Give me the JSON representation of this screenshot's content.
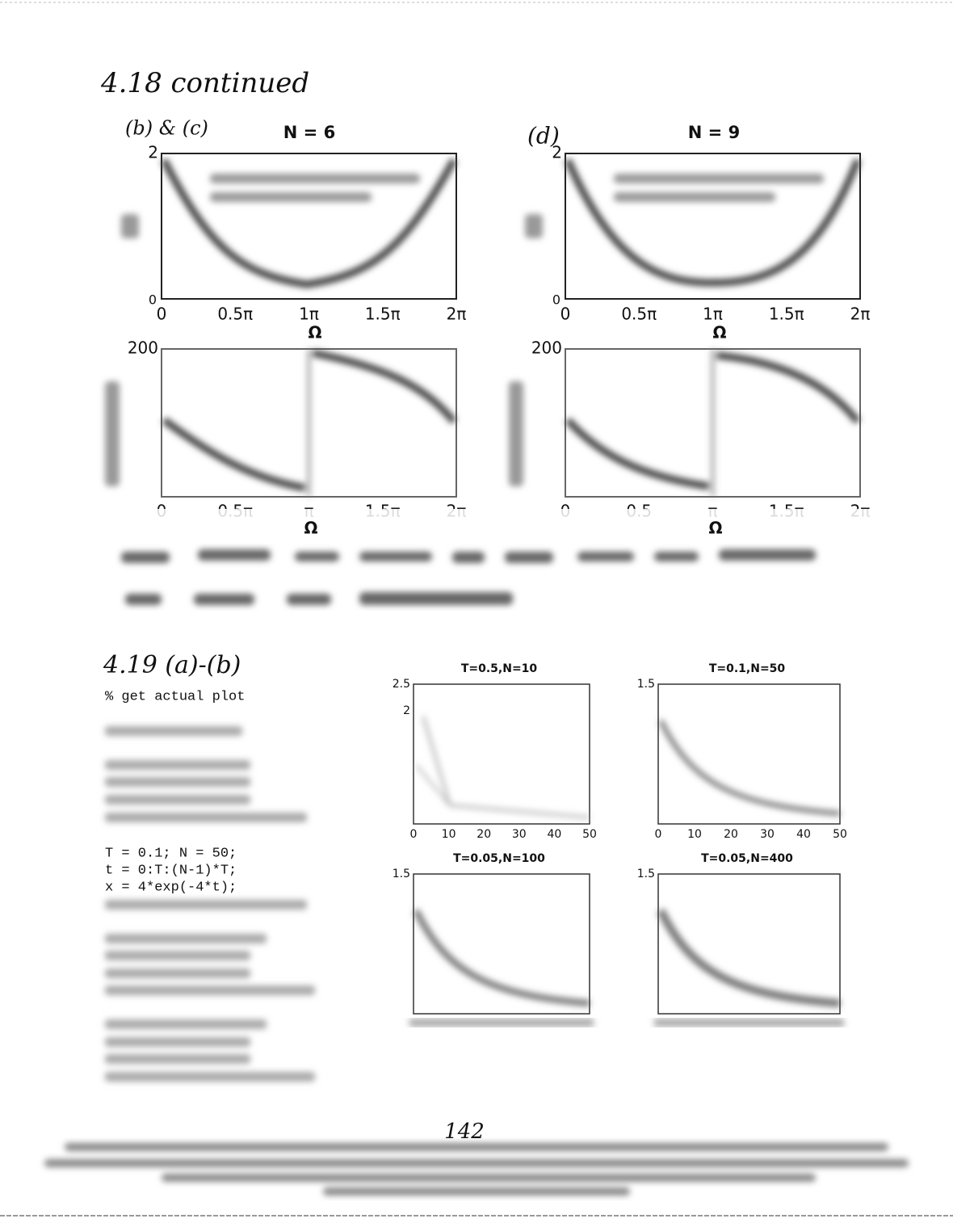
{
  "section_418": {
    "heading": "4.18 continued",
    "label_bc": "(b) & (c)",
    "label_d": "(d)",
    "magnitude_plots": [
      {
        "title": "N = 6",
        "ytick_top": "2",
        "ytick_bottom": "0",
        "xticks": [
          "0",
          "0.5π",
          "1π",
          "1.5π",
          "2π"
        ],
        "xlabel": "Ω"
      },
      {
        "title": "N = 9",
        "ytick_top": "2",
        "ytick_bottom": "0",
        "xticks": [
          "0",
          "0.5π",
          "1π",
          "1.5π",
          "2π"
        ],
        "xlabel": "Ω"
      }
    ],
    "phase_plots": [
      {
        "ytick_top": "200",
        "xticks": [
          "0",
          "0.5π",
          "π",
          "1.5π",
          "2π"
        ],
        "xlabel": "Ω"
      },
      {
        "ytick_top": "200",
        "xticks": [
          "0",
          "0.5",
          "π",
          "1.5π",
          "2π"
        ],
        "xlabel": "Ω"
      }
    ]
  },
  "section_419": {
    "heading": "4.19 (a)-(b)",
    "code_top": "% get actual plot",
    "code_middle": [
      "T = 0.1; N = 50;",
      "t = 0:T:(N-1)*T;",
      "x = 4*exp(-4*t);"
    ],
    "plots": [
      {
        "title": "T=0.5,N=10",
        "yticks": [
          "2.5",
          "2"
        ],
        "xticks": [
          "0",
          "10",
          "20",
          "30",
          "40",
          "50"
        ]
      },
      {
        "title": "T=0.1,N=50",
        "yticks": [
          "1.5"
        ],
        "xticks": [
          "0",
          "10",
          "20",
          "30",
          "40",
          "50"
        ]
      },
      {
        "title": "T=0.05,N=100",
        "yticks": [
          "1.5"
        ],
        "xticks": []
      },
      {
        "title": "T=0.05,N=400",
        "yticks": [
          "1.5"
        ],
        "xticks": []
      }
    ]
  },
  "page_number": "142"
}
